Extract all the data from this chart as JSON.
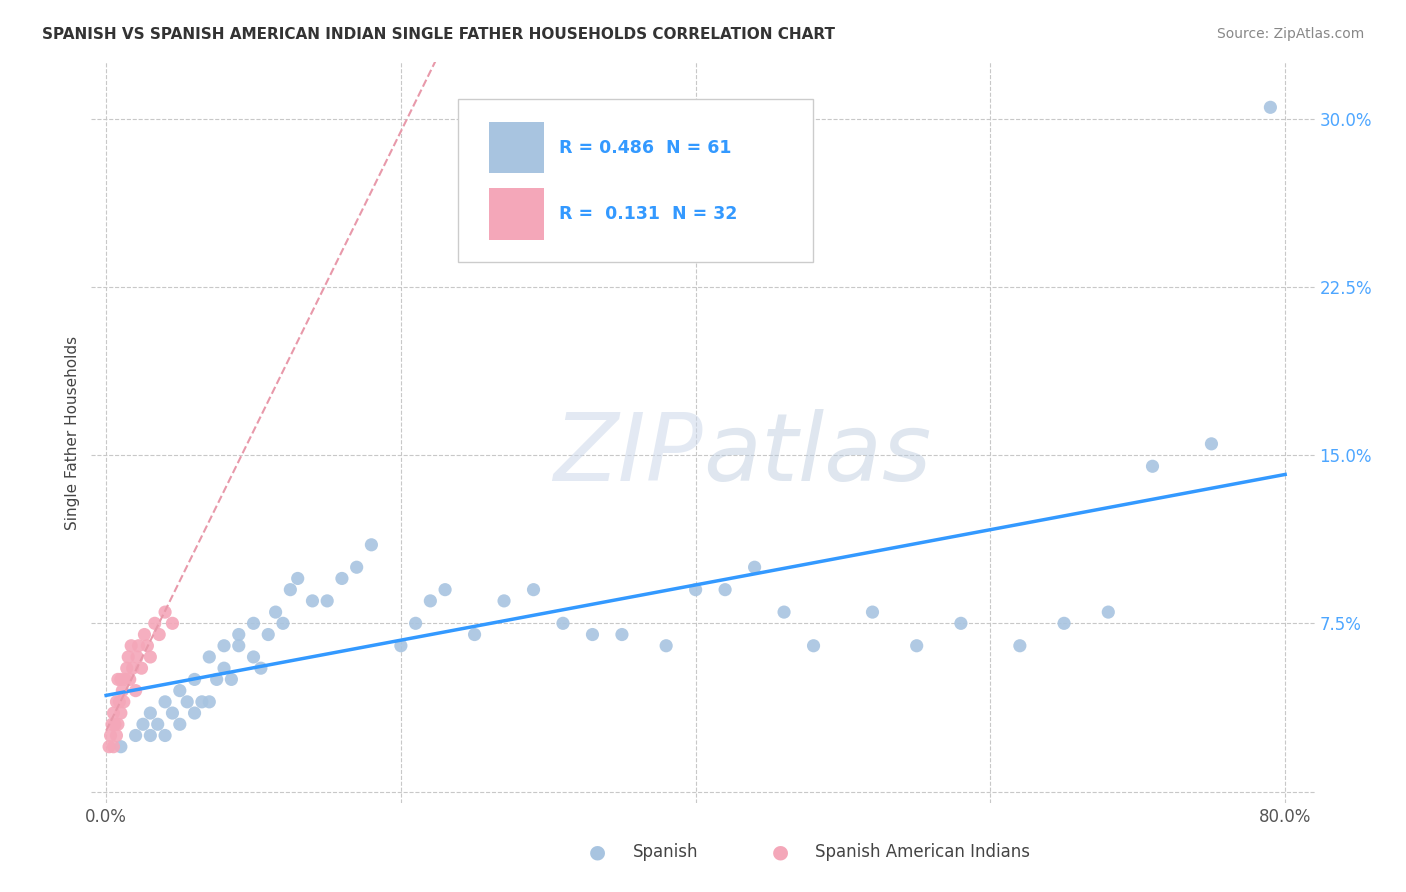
{
  "title": "SPANISH VS SPANISH AMERICAN INDIAN SINGLE FATHER HOUSEHOLDS CORRELATION CHART",
  "source": "Source: ZipAtlas.com",
  "ylabel": "Single Father Households",
  "xlim": [
    -0.01,
    0.82
  ],
  "ylim": [
    -0.005,
    0.325
  ],
  "xticks": [
    0.0,
    0.2,
    0.4,
    0.6,
    0.8
  ],
  "xticklabels": [
    "0.0%",
    "",
    "",
    "",
    "80.0%"
  ],
  "yticks": [
    0.0,
    0.075,
    0.15,
    0.225,
    0.3
  ],
  "yticklabels": [
    "",
    "7.5%",
    "15.0%",
    "22.5%",
    "30.0%"
  ],
  "grid_color": "#c8c8c8",
  "background_color": "#ffffff",
  "watermark": "ZIPatlas",
  "legend_R1": "0.486",
  "legend_N1": "61",
  "legend_R2": "0.131",
  "legend_N2": "32",
  "blue_color": "#a8c4e0",
  "pink_color": "#f4a7b9",
  "blue_line_color": "#3399ff",
  "pink_line_color": "#e899aa",
  "spanish_x": [
    0.01,
    0.02,
    0.025,
    0.03,
    0.03,
    0.035,
    0.04,
    0.04,
    0.045,
    0.05,
    0.05,
    0.055,
    0.06,
    0.06,
    0.065,
    0.07,
    0.07,
    0.075,
    0.08,
    0.08,
    0.085,
    0.09,
    0.09,
    0.1,
    0.1,
    0.105,
    0.11,
    0.115,
    0.12,
    0.125,
    0.13,
    0.14,
    0.15,
    0.16,
    0.17,
    0.18,
    0.2,
    0.21,
    0.22,
    0.23,
    0.25,
    0.27,
    0.29,
    0.31,
    0.33,
    0.35,
    0.38,
    0.4,
    0.42,
    0.44,
    0.46,
    0.48,
    0.52,
    0.55,
    0.58,
    0.62,
    0.65,
    0.68,
    0.71,
    0.75,
    0.79
  ],
  "spanish_y": [
    0.02,
    0.025,
    0.03,
    0.025,
    0.035,
    0.03,
    0.025,
    0.04,
    0.035,
    0.03,
    0.045,
    0.04,
    0.035,
    0.05,
    0.04,
    0.06,
    0.04,
    0.05,
    0.055,
    0.065,
    0.05,
    0.07,
    0.065,
    0.06,
    0.075,
    0.055,
    0.07,
    0.08,
    0.075,
    0.09,
    0.095,
    0.085,
    0.085,
    0.095,
    0.1,
    0.11,
    0.065,
    0.075,
    0.085,
    0.09,
    0.07,
    0.085,
    0.09,
    0.075,
    0.07,
    0.07,
    0.065,
    0.09,
    0.09,
    0.1,
    0.08,
    0.065,
    0.08,
    0.065,
    0.075,
    0.065,
    0.075,
    0.08,
    0.145,
    0.155,
    0.305
  ],
  "spanish_american_indian_x": [
    0.002,
    0.003,
    0.004,
    0.005,
    0.005,
    0.006,
    0.007,
    0.007,
    0.008,
    0.008,
    0.009,
    0.01,
    0.01,
    0.011,
    0.012,
    0.013,
    0.014,
    0.015,
    0.016,
    0.017,
    0.018,
    0.02,
    0.021,
    0.022,
    0.024,
    0.026,
    0.028,
    0.03,
    0.033,
    0.036,
    0.04,
    0.045
  ],
  "spanish_american_indian_y": [
    0.02,
    0.025,
    0.03,
    0.02,
    0.035,
    0.03,
    0.025,
    0.04,
    0.03,
    0.05,
    0.04,
    0.035,
    0.05,
    0.045,
    0.04,
    0.05,
    0.055,
    0.06,
    0.05,
    0.065,
    0.055,
    0.045,
    0.06,
    0.065,
    0.055,
    0.07,
    0.065,
    0.06,
    0.075,
    0.07,
    0.08,
    0.075
  ]
}
